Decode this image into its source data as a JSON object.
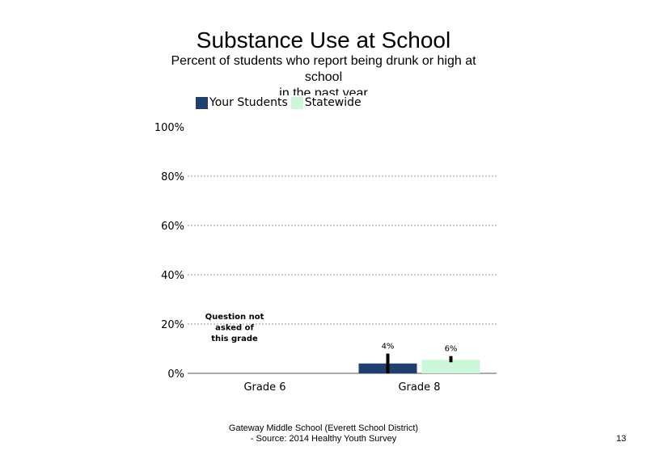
{
  "slide": {
    "title": "Substance Use at School",
    "subtitle": "Percent of students  who report being drunk or high at school\nin the past year",
    "footer_line1": "Gateway Middle  School  (Everett School District)",
    "footer_line2": "- Source: 2014 Healthy  Youth Survey",
    "page_number": "13"
  },
  "chart_data": {
    "type": "bar",
    "title": "Substance Use at School",
    "subtitle": "Percent of students  who report being drunk or high at school in the past year",
    "categories": [
      "Grade 6",
      "Grade 8"
    ],
    "series": [
      {
        "name": "Your Students",
        "color": "#1f3f6e",
        "values": [
          null,
          4
        ],
        "labels": [
          "",
          "4%"
        ],
        "error_low": [
          null,
          0
        ],
        "error_high": [
          null,
          8
        ]
      },
      {
        "name": "Statewide",
        "color": "#ccf7da",
        "values": [
          null,
          5.5
        ],
        "labels": [
          "",
          "6%"
        ],
        "error_low": [
          null,
          4.5
        ],
        "error_high": [
          null,
          7
        ]
      }
    ],
    "ylim": [
      0,
      100
    ],
    "yticks": [
      0,
      20,
      40,
      60,
      80,
      100
    ],
    "ytick_labels": [
      "0%",
      "20%",
      "40%",
      "60%",
      "80%",
      "100%"
    ],
    "grid": true,
    "legend_position": "top-left",
    "annotation": "Question not asked of this grade",
    "annotation_category": "Grade 6"
  }
}
